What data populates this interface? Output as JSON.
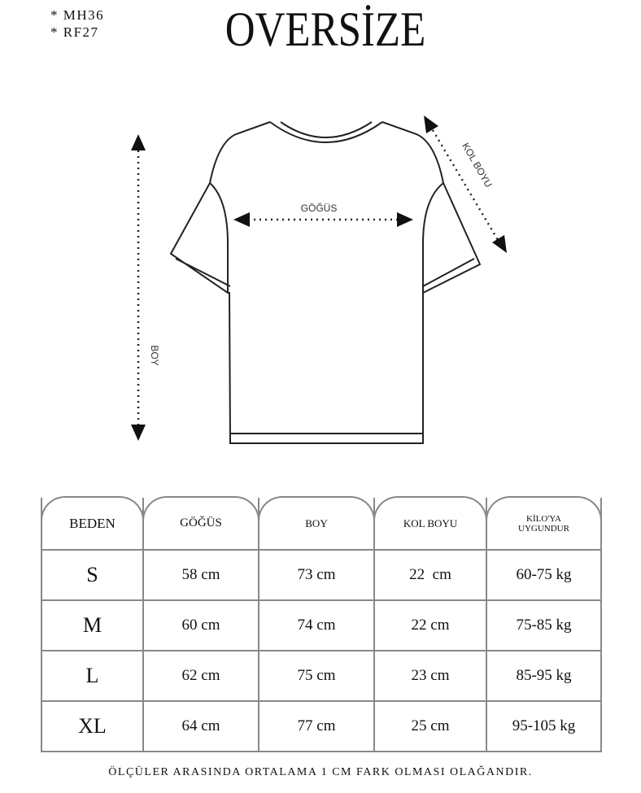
{
  "codes": [
    "* MH36",
    "* RF27"
  ],
  "title": "OVERSİZE",
  "diagram": {
    "chest_label": "GÖĞÜS",
    "length_label": "BOY",
    "sleeve_label": "KOL BOYU"
  },
  "table": {
    "headers": [
      "BEDEN",
      "GÖĞÜS",
      "BOY",
      "KOL BOYU",
      "KİLO'YA",
      "UYGUNDUR"
    ],
    "rows": [
      [
        "S",
        "58 cm",
        "73 cm",
        "22  cm",
        "60-75 kg"
      ],
      [
        "M",
        "60 cm",
        "74 cm",
        "22 cm",
        "75-85 kg"
      ],
      [
        "L",
        "62 cm",
        "75 cm",
        "23 cm",
        "85-95 kg"
      ],
      [
        "XL",
        "64 cm",
        "77 cm",
        "25 cm",
        "95-105 kg"
      ]
    ]
  },
  "footer": "ÖLÇÜLER ARASINDA ORTALAMA 1 CM FARK OLMASI OLAĞANDIR."
}
